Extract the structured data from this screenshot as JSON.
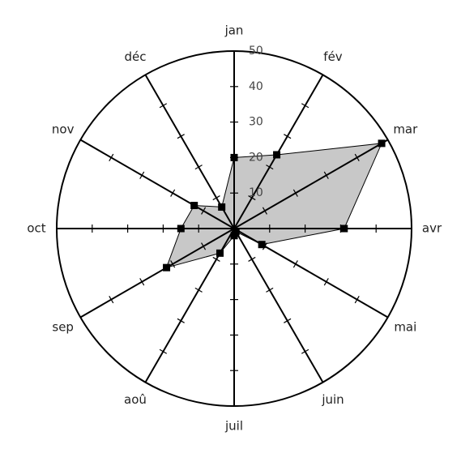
{
  "chart_data": {
    "type": "radar",
    "categories": [
      "jan",
      "fév",
      "mar",
      "avr",
      "mai",
      "juin",
      "juil",
      "aoû",
      "sep",
      "oct",
      "nov",
      "déc"
    ],
    "series": [
      {
        "color": "#c8c8c8",
        "values": [
          20,
          24,
          48,
          31,
          9,
          1,
          2,
          8,
          22,
          15,
          13,
          7
        ]
      }
    ],
    "ylim": [
      0,
      50
    ],
    "yticks": [
      10,
      20,
      30,
      40,
      50
    ]
  }
}
